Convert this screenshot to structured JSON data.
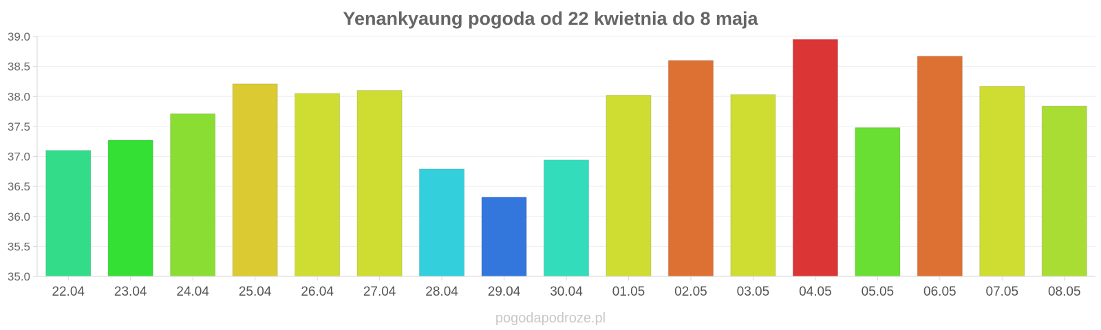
{
  "chart_data": {
    "type": "bar",
    "title": "Yenankyaung pogoda od 22 kwietnia do 8 maja",
    "xlabel": "",
    "ylabel": "",
    "ylim": [
      35.0,
      39.0
    ],
    "y_ticks": [
      "35.0",
      "35.5",
      "36.0",
      "36.5",
      "37.0",
      "37.5",
      "38.0",
      "38.5",
      "39.0"
    ],
    "grid": true,
    "categories": [
      "22.04",
      "23.04",
      "24.04",
      "25.04",
      "26.04",
      "27.04",
      "28.04",
      "29.04",
      "30.04",
      "01.05",
      "02.05",
      "03.05",
      "04.05",
      "05.05",
      "06.05",
      "07.05",
      "08.05"
    ],
    "values": [
      37.1,
      37.27,
      37.71,
      38.21,
      38.05,
      38.1,
      36.79,
      36.32,
      36.94,
      38.02,
      38.6,
      38.03,
      38.95,
      37.48,
      38.67,
      38.17,
      37.84
    ],
    "colors": [
      "#33dc89",
      "#33e033",
      "#8ade33",
      "#dcca33",
      "#cfdd33",
      "#cfdd33",
      "#33cfdc",
      "#3377dd",
      "#33dcbb",
      "#cfdd33",
      "#dd7033",
      "#cfdd33",
      "#dc3535",
      "#6adf33",
      "#dd7033",
      "#cfdd33",
      "#aadd33"
    ]
  },
  "watermark": "pogodapodroze.pl"
}
